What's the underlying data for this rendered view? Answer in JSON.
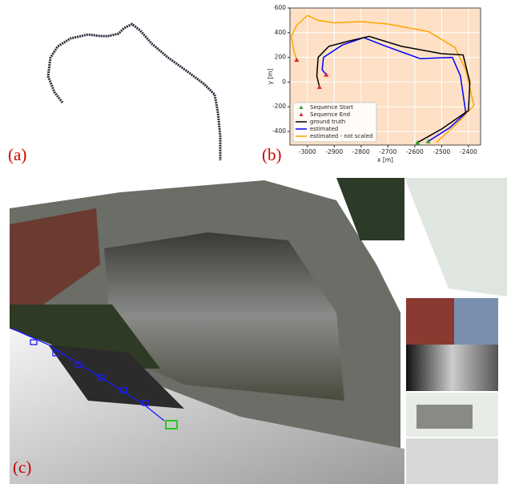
{
  "panel_labels": [
    "(a)",
    "(b)",
    "(c)"
  ],
  "chart_data": {
    "type": "line",
    "xlabel": "x [m]",
    "ylabel": "y [m]",
    "xlim": [
      -3065,
      -2355
    ],
    "ylim": [
      -510,
      600
    ],
    "xticks": [
      -3000,
      -2900,
      -2800,
      -2700,
      -2600,
      -2500,
      -2400
    ],
    "yticks": [
      -400,
      -200,
      0,
      200,
      400,
      600
    ],
    "grid": true,
    "background": "#fde0c5",
    "legend": "lower left",
    "series": [
      {
        "name": "Sequence Start",
        "color": "#2ca02c",
        "style": "marker",
        "x": [
          -2590,
          -2550
        ],
        "y": [
          -490,
          -480
        ]
      },
      {
        "name": "Sequence End",
        "color": "#d62728",
        "style": "marker",
        "x": [
          -2955,
          -2930,
          -3040
        ],
        "y": [
          -40,
          60,
          180
        ]
      },
      {
        "name": "ground truth",
        "color": "#000000",
        "style": "line",
        "x": [
          -2590,
          -2500,
          -2400,
          -2395,
          -2420,
          -2500,
          -2650,
          -2770,
          -2850,
          -2920,
          -2960,
          -2965,
          -2955
        ],
        "y": [
          -490,
          -380,
          -230,
          0,
          220,
          230,
          290,
          370,
          330,
          290,
          200,
          50,
          -40
        ]
      },
      {
        "name": "estimated",
        "color": "#0000ff",
        "style": "line",
        "x": [
          -2550,
          -2470,
          -2410,
          -2430,
          -2460,
          -2580,
          -2720,
          -2790,
          -2870,
          -2940,
          -2945,
          -2930
        ],
        "y": [
          -480,
          -370,
          -250,
          50,
          200,
          190,
          300,
          360,
          300,
          200,
          100,
          60
        ]
      },
      {
        "name": "estimated - not scaled",
        "color": "#ffa500",
        "style": "line",
        "x": [
          -2520,
          -2440,
          -2380,
          -2410,
          -2450,
          -2550,
          -2700,
          -2800,
          -2900,
          -2960,
          -3000,
          -3040,
          -3060,
          -3050,
          -3040
        ],
        "y": [
          -490,
          -330,
          -190,
          100,
          280,
          410,
          470,
          490,
          480,
          500,
          540,
          460,
          370,
          250,
          180
        ]
      }
    ]
  }
}
